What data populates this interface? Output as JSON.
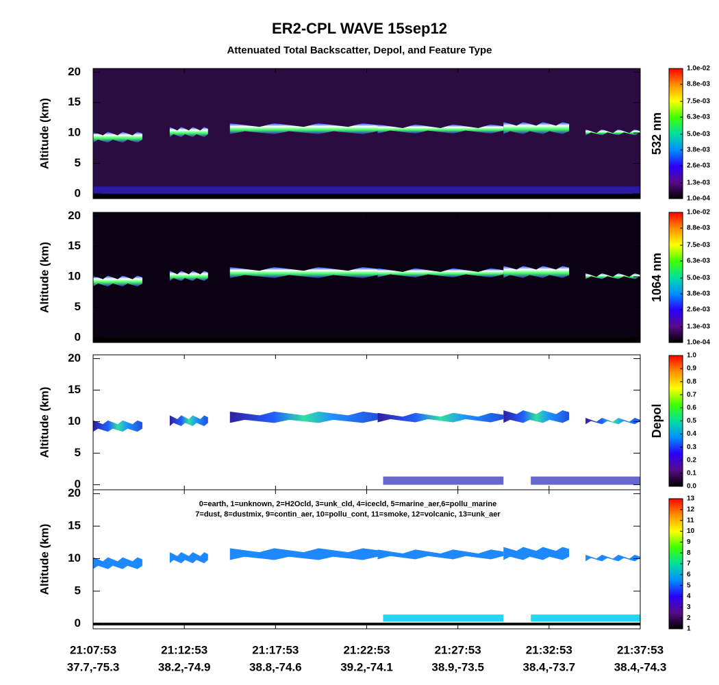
{
  "title": "ER2-CPL WAVE 15sep12",
  "subtitle": "Attenuated Total Backscatter, Depol, and Feature Type",
  "x_axis": {
    "ticks": [
      "21:07:53",
      "21:12:53",
      "21:17:53",
      "21:22:53",
      "21:27:53",
      "21:32:53",
      "21:37:53"
    ],
    "sublabels": [
      "37.7,-75.3",
      "38.2,-74.9",
      "38.8,-74.6",
      "39.2,-74.1",
      "38.9,-73.5",
      "38.4,-73.7",
      "38.4,-74.3"
    ]
  },
  "chart_data": [
    {
      "type": "heatmap",
      "ylabel": "Altitude (km)",
      "ylim": [
        -0.8,
        20.6
      ],
      "yticks": [
        0,
        5,
        10,
        15,
        20
      ],
      "colorbar": {
        "label": "532 nm",
        "range": [
          0.0001,
          0.01
        ],
        "ticks": [
          {
            "value": 0.0001,
            "label": "1.0e-04"
          },
          {
            "value": 0.0013,
            "label": "1.3e-03"
          },
          {
            "value": 0.0026,
            "label": "2.6e-03"
          },
          {
            "value": 0.0038,
            "label": "3.8e-03"
          },
          {
            "value": 0.005,
            "label": "5.0e-03"
          },
          {
            "value": 0.0063,
            "label": "6.3e-03"
          },
          {
            "value": 0.0075,
            "label": "7.5e-03"
          },
          {
            "value": 0.0088,
            "label": "8.8e-03"
          },
          {
            "value": 0.01,
            "label": "1.0e-02"
          }
        ],
        "colormap": [
          "#000000",
          "#5a0a8a",
          "#2a00ff",
          "#0090ff",
          "#00e0a0",
          "#40ff00",
          "#ffff00",
          "#ff9000",
          "#ff0000"
        ]
      }
    },
    {
      "type": "heatmap",
      "ylabel": "Altitude (km)",
      "ylim": [
        -0.8,
        20.6
      ],
      "yticks": [
        0,
        5,
        10,
        15,
        20
      ],
      "colorbar": {
        "label": "1064 nm",
        "range": [
          0.0001,
          0.01
        ],
        "ticks": [
          {
            "value": 0.0001,
            "label": "1.0e-04"
          },
          {
            "value": 0.0013,
            "label": "1.3e-03"
          },
          {
            "value": 0.0026,
            "label": "2.6e-03"
          },
          {
            "value": 0.0038,
            "label": "3.8e-03"
          },
          {
            "value": 0.005,
            "label": "5.0e-03"
          },
          {
            "value": 0.0063,
            "label": "6.3e-03"
          },
          {
            "value": 0.0075,
            "label": "7.5e-03"
          },
          {
            "value": 0.0088,
            "label": "8.8e-03"
          },
          {
            "value": 0.01,
            "label": "1.0e-02"
          }
        ],
        "colormap": [
          "#000000",
          "#5a0a8a",
          "#2a00ff",
          "#0090ff",
          "#00e0a0",
          "#40ff00",
          "#ffff00",
          "#ff9000",
          "#ff0000"
        ]
      }
    },
    {
      "type": "heatmap",
      "ylabel": "Altitude (km)",
      "ylim": [
        -0.8,
        20.6
      ],
      "yticks": [
        0,
        5,
        10,
        15,
        20
      ],
      "colorbar": {
        "label": "Depol",
        "range": [
          0,
          1
        ],
        "ticks": [
          {
            "value": 0,
            "label": "0.0"
          },
          0.1,
          0.2,
          0.3,
          0.4,
          0.5,
          0.6,
          0.7,
          0.8,
          0.9,
          {
            "value": 1,
            "label": "1.0"
          }
        ],
        "colormap": [
          "#000000",
          "#5a0a8a",
          "#2a00ff",
          "#0090ff",
          "#00e0a0",
          "#40ff00",
          "#ffff00",
          "#ff9000",
          "#ff0000"
        ]
      }
    },
    {
      "type": "heatmap",
      "ylabel": "Altitude (km)",
      "ylim": [
        -0.8,
        20.6
      ],
      "yticks": [
        0,
        5,
        10,
        15,
        20
      ],
      "annotation": [
        "0=earth, 1=unknown, 2=H2Ocld, 3=unk_cld, 4=icecld, 5=marine_aer,6=pollu_marine",
        "7=dust, 8=dustmix, 9=contin_aer, 10=pollu_cont, 11=smoke, 12=volcanic, 13=unk_aer"
      ],
      "colorbar": {
        "range": [
          1,
          13
        ],
        "ticks": [
          1,
          2,
          3,
          4,
          5,
          6,
          7,
          8,
          9,
          10,
          11,
          12,
          13
        ],
        "colormap": [
          "#000000",
          "#5a0a8a",
          "#2a00ff",
          "#0090ff",
          "#00e0a0",
          "#40ff00",
          "#ffff00",
          "#ff9000",
          "#ff0000"
        ]
      }
    }
  ]
}
